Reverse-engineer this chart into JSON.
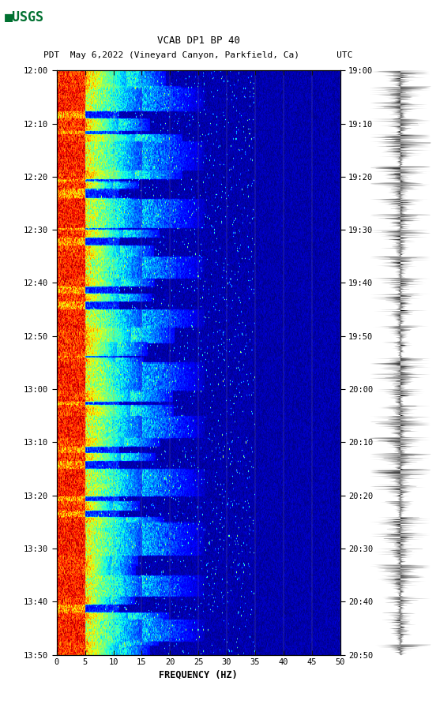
{
  "title_line1": "VCAB DP1 BP 40",
  "title_line2": "PDT  May 6,2022 (Vineyard Canyon, Parkfield, Ca)       UTC",
  "xlabel": "FREQUENCY (HZ)",
  "freq_min": 0,
  "freq_max": 50,
  "ytick_labels_left": [
    "12:00",
    "12:10",
    "12:20",
    "12:30",
    "12:40",
    "12:50",
    "13:00",
    "13:10",
    "13:20",
    "13:30",
    "13:40",
    "13:50"
  ],
  "ytick_labels_right": [
    "19:00",
    "19:10",
    "19:20",
    "19:30",
    "19:40",
    "19:50",
    "20:00",
    "20:10",
    "20:20",
    "20:30",
    "20:40",
    "20:50"
  ],
  "xtick_vals": [
    0,
    5,
    10,
    15,
    20,
    25,
    30,
    35,
    40,
    45,
    50
  ],
  "fig_width": 5.52,
  "fig_height": 8.92,
  "bg_color": "#ffffff",
  "usgs_green": "#007030",
  "spectrogram_colormap": "jet",
  "n_time": 660,
  "n_freq": 500
}
